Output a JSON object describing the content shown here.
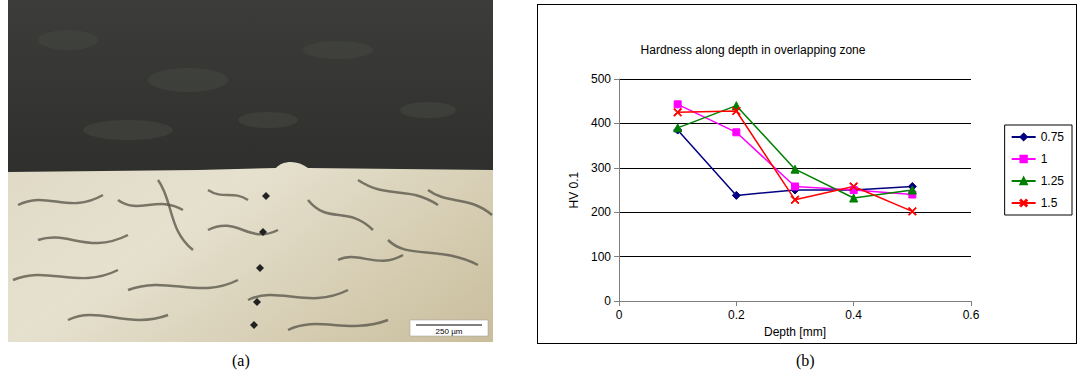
{
  "chart_data": {
    "type": "line",
    "title": "Hardness along depth in overlapping zone",
    "x_label": "Depth [mm]",
    "y_label": "HV 0.1",
    "xlim": [
      0,
      0.6
    ],
    "xticks": [
      0,
      0.2,
      0.4,
      0.6
    ],
    "ylim": [
      0,
      500
    ],
    "yticks": [
      0,
      100,
      200,
      300,
      400,
      500
    ],
    "grid": true,
    "legend": "right",
    "x": [
      0.1,
      0.2,
      0.3,
      0.4,
      0.5
    ],
    "series": [
      {
        "name": "0.75",
        "color": "#000080",
        "marker": "diamond",
        "values": [
          385,
          238,
          250,
          250,
          258
        ]
      },
      {
        "name": "1",
        "color": "#ff00ff",
        "marker": "square",
        "values": [
          443,
          380,
          258,
          250,
          240
        ]
      },
      {
        "name": "1.25",
        "color": "#008000",
        "marker": "triangle",
        "values": [
          390,
          440,
          297,
          232,
          250
        ]
      },
      {
        "name": "1.5",
        "color": "#ff0000",
        "marker": "x",
        "values": [
          425,
          428,
          228,
          258,
          202
        ]
      }
    ]
  },
  "panels": {
    "a": {
      "label": "(a)",
      "scale_bar": "250 µm"
    },
    "b": {
      "label": "(b)"
    }
  }
}
